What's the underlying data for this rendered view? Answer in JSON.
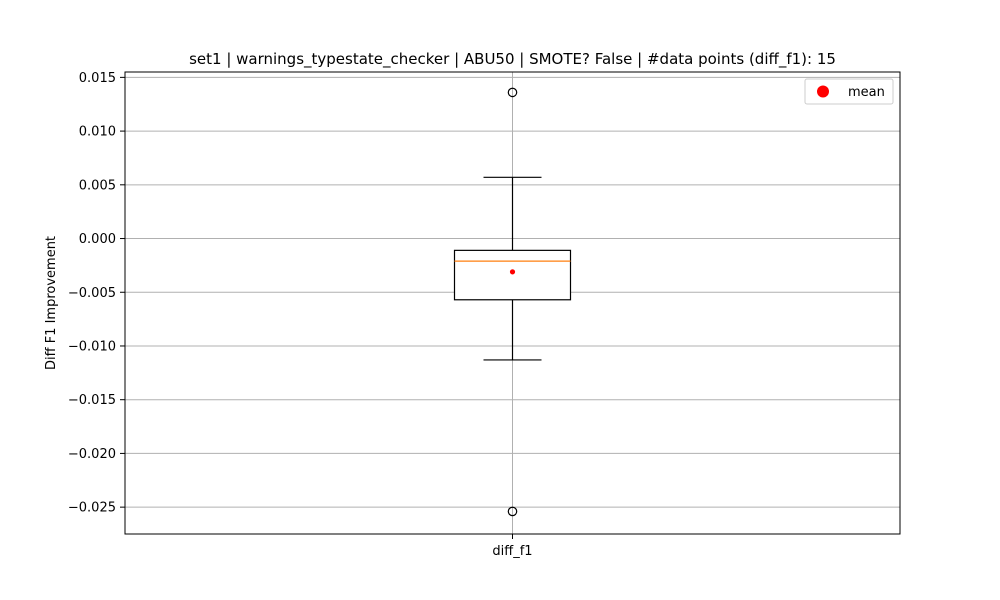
{
  "chart_data": {
    "type": "box",
    "title": "set1 | warnings_typestate_checker | ABU50 | SMOTE? False | #data points (diff_f1): 15",
    "xlabel": "",
    "ylabel": "Diff F1 Improvement",
    "categories": [
      "diff_f1"
    ],
    "ylim": [
      -0.0275,
      0.0155
    ],
    "yticks": [
      0.015,
      0.01,
      0.005,
      0.0,
      -0.005,
      -0.01,
      -0.015,
      -0.02,
      -0.025
    ],
    "ytick_labels": [
      "0.015",
      "0.010",
      "0.005",
      "0.000",
      "−0.005",
      "−0.010",
      "−0.015",
      "−0.020",
      "−0.025"
    ],
    "grid": true,
    "legend": {
      "placement": "top-right",
      "entries": [
        "mean"
      ]
    },
    "boxes": [
      {
        "category": "diff_f1",
        "whisker_low": -0.0113,
        "q1": -0.0057,
        "median": -0.0021,
        "q3": -0.0011,
        "whisker_high": 0.0057,
        "mean": -0.0031,
        "outliers": [
          0.0136,
          -0.0254
        ]
      }
    ],
    "colors": {
      "box": "#000000",
      "median": "#ff7f0e",
      "mean": "#ff0000",
      "grid": "#b0b0b0"
    }
  }
}
